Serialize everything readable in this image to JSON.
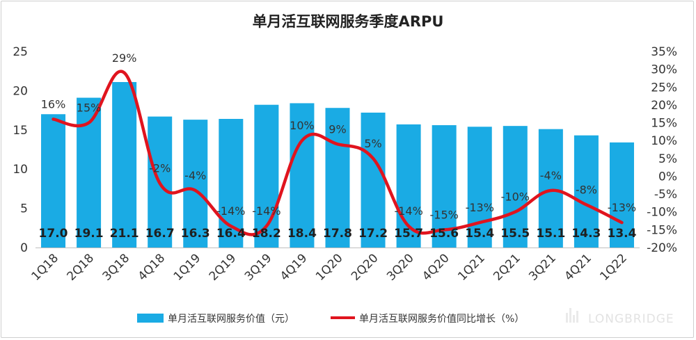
{
  "chart_data": {
    "type": "bar+line",
    "title": "单月活互联网服务季度ARPU",
    "categories": [
      "1Q18",
      "2Q18",
      "3Q18",
      "4Q18",
      "1Q19",
      "2Q19",
      "3Q19",
      "4Q19",
      "1Q20",
      "2Q20",
      "3Q20",
      "4Q20",
      "1Q21",
      "2Q21",
      "3Q21",
      "4Q21",
      "1Q22"
    ],
    "series": [
      {
        "name": "单月活互联网服务价值（元）",
        "type": "bar",
        "axis": "left",
        "color": "#1AABE4",
        "values": [
          17.0,
          19.1,
          21.1,
          16.7,
          16.3,
          16.4,
          18.2,
          18.4,
          17.8,
          17.2,
          15.7,
          15.6,
          15.4,
          15.5,
          15.1,
          14.3,
          13.4
        ],
        "labels": [
          "17.0",
          "19.1",
          "21.1",
          "16.7",
          "16.3",
          "16.4",
          "18.2",
          "18.4",
          "17.8",
          "17.2",
          "15.7",
          "15.6",
          "15.4",
          "15.5",
          "15.1",
          "14.3",
          "13.4"
        ]
      },
      {
        "name": "单月活互联网服务价值同比增长（%）",
        "type": "line",
        "axis": "right",
        "color": "#E0141E",
        "values": [
          16,
          15,
          29,
          -2,
          -4,
          -14,
          -14,
          10,
          9,
          5,
          -14,
          -15,
          -13,
          -10,
          -4,
          -8,
          -13
        ],
        "labels": [
          "16%",
          "15%",
          "29%",
          "-2%",
          "-4%",
          "-14%",
          "-14%",
          "10%",
          "9%",
          "5%",
          "-14%",
          "-15%",
          "-13%",
          "-10%",
          "-4%",
          "-8%",
          "-13%"
        ]
      }
    ],
    "y_left": {
      "min": 0,
      "max": 25,
      "ticks": [
        "0",
        "5",
        "10",
        "15",
        "20",
        "25"
      ]
    },
    "y_right": {
      "min": -20,
      "max": 35,
      "ticks": [
        "-20%",
        "-15%",
        "-10%",
        "-5%",
        "0%",
        "5%",
        "10%",
        "15%",
        "20%",
        "25%",
        "30%",
        "35%"
      ]
    },
    "grid": false,
    "legend_position": "bottom",
    "watermark": "LONGBRIDGE"
  }
}
